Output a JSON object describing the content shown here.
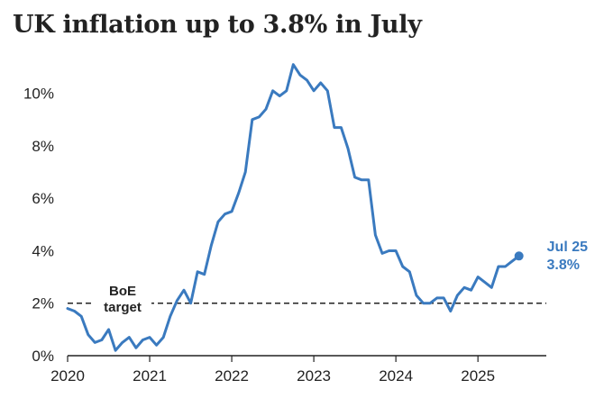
{
  "title": "UK inflation up to 3.8% in July",
  "chart_data": {
    "type": "line",
    "title": "UK inflation up to 3.8% in July",
    "xlabel": "",
    "ylabel": "",
    "xlim": [
      2020.0,
      2025.833
    ],
    "ylim": [
      0,
      11.5
    ],
    "x_ticks": [
      "2020",
      "2021",
      "2022",
      "2023",
      "2024",
      "2025"
    ],
    "y_ticks": [
      "0%",
      "2%",
      "4%",
      "6%",
      "8%",
      "10%"
    ],
    "grid": false,
    "reference_line": {
      "value": 2,
      "label_line1": "BoE",
      "label_line2": "target"
    },
    "end_label": {
      "line1": "Jul 25",
      "line2": "3.8%"
    },
    "series": [
      {
        "color": "#3a7abf",
        "x": [
          "2020-01",
          "2020-02",
          "2020-03",
          "2020-04",
          "2020-05",
          "2020-06",
          "2020-07",
          "2020-08",
          "2020-09",
          "2020-10",
          "2020-11",
          "2020-12",
          "2021-01",
          "2021-02",
          "2021-03",
          "2021-04",
          "2021-05",
          "2021-06",
          "2021-07",
          "2021-08",
          "2021-09",
          "2021-10",
          "2021-11",
          "2021-12",
          "2022-01",
          "2022-02",
          "2022-03",
          "2022-04",
          "2022-05",
          "2022-06",
          "2022-07",
          "2022-08",
          "2022-09",
          "2022-10",
          "2022-11",
          "2022-12",
          "2023-01",
          "2023-02",
          "2023-03",
          "2023-04",
          "2023-05",
          "2023-06",
          "2023-07",
          "2023-08",
          "2023-09",
          "2023-10",
          "2023-11",
          "2023-12",
          "2024-01",
          "2024-02",
          "2024-03",
          "2024-04",
          "2024-05",
          "2024-06",
          "2024-07",
          "2024-08",
          "2024-09",
          "2024-10",
          "2024-11",
          "2024-12",
          "2025-01",
          "2025-02",
          "2025-03",
          "2025-04",
          "2025-05",
          "2025-06",
          "2025-07"
        ],
        "values": [
          1.8,
          1.7,
          1.5,
          0.8,
          0.5,
          0.6,
          1.0,
          0.2,
          0.5,
          0.7,
          0.3,
          0.6,
          0.7,
          0.4,
          0.7,
          1.5,
          2.1,
          2.5,
          2.0,
          3.2,
          3.1,
          4.2,
          5.1,
          5.4,
          5.5,
          6.2,
          7.0,
          9.0,
          9.1,
          9.4,
          10.1,
          9.9,
          10.1,
          11.1,
          10.7,
          10.5,
          10.1,
          10.4,
          10.1,
          8.7,
          8.7,
          7.9,
          6.8,
          6.7,
          6.7,
          4.6,
          3.9,
          4.0,
          4.0,
          3.4,
          3.2,
          2.3,
          2.0,
          2.0,
          2.2,
          2.2,
          1.7,
          2.3,
          2.6,
          2.5,
          3.0,
          2.8,
          2.6,
          3.4,
          3.4,
          3.6,
          3.8
        ]
      }
    ]
  }
}
